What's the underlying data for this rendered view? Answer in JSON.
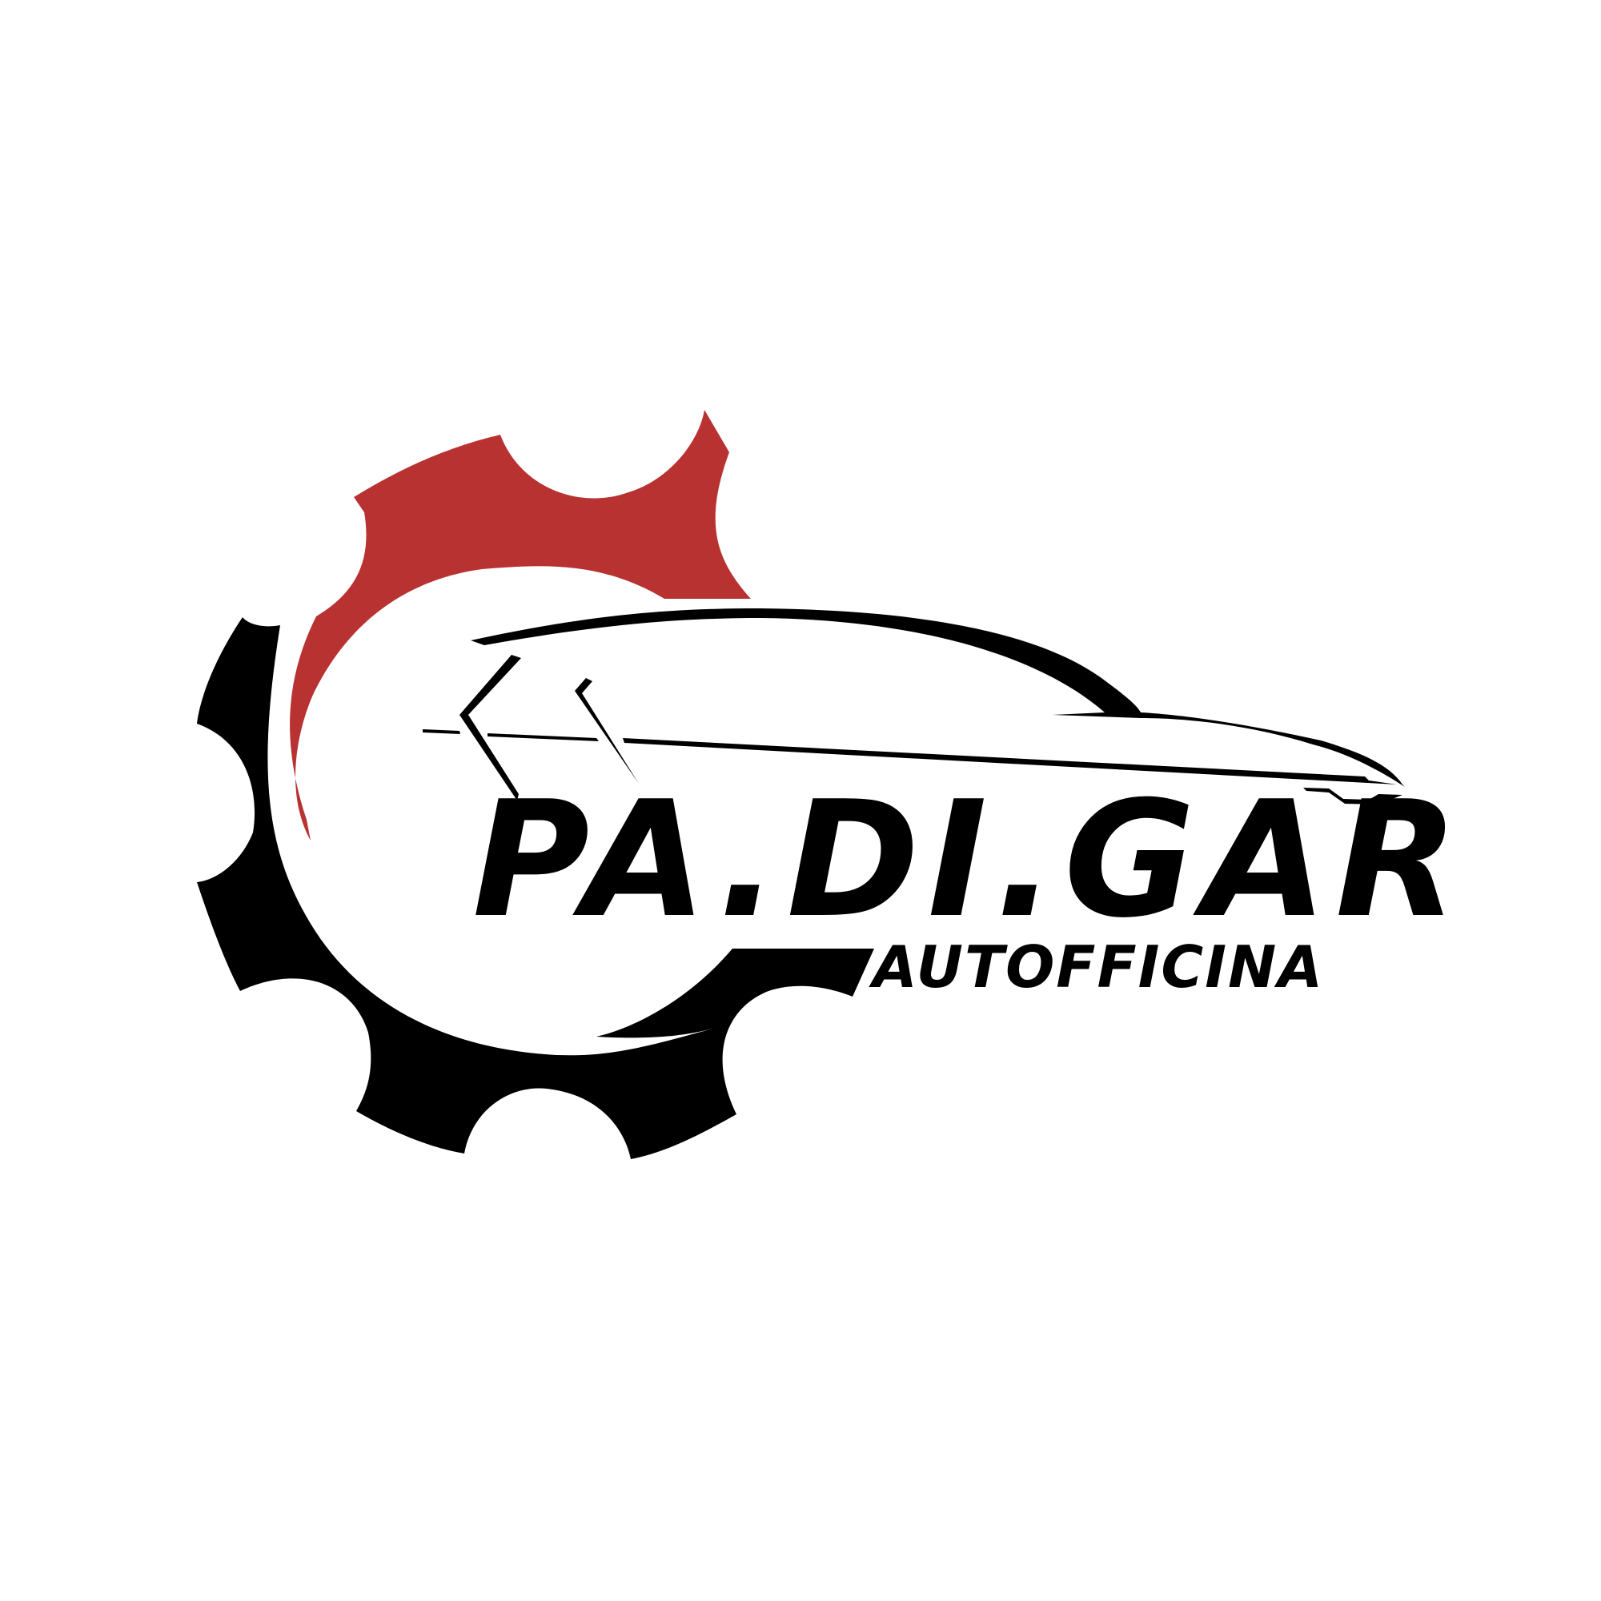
{
  "logo": {
    "brand_name": "PA.DI.GAR",
    "subtitle": "AUTOFFICINA",
    "colors": {
      "gear_top": "#b83232",
      "gear_bottom": "#000000",
      "text": "#000000",
      "background": "#ffffff"
    },
    "icons": [
      "gear-icon",
      "car-silhouette-icon"
    ]
  }
}
